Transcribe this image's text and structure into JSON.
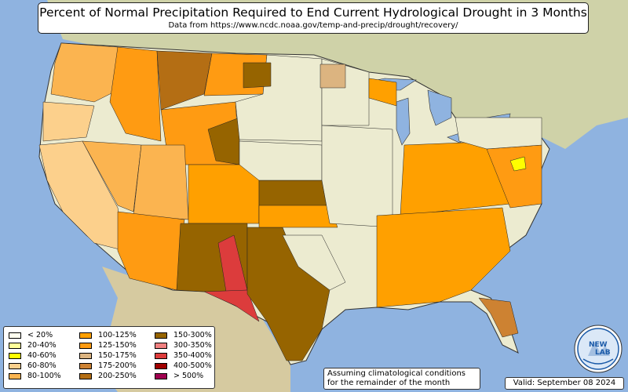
{
  "title": "Percent of Normal Precipitation Required to End Current Hydrological Drought in 3 Months",
  "subtitle": "Data from https://www.ncdc.noaa.gov/temp-and-precip/drought/recovery/",
  "note": [
    "Assuming climatological conditions",
    "for the remainder of the month"
  ],
  "valid": "Valid: September 08 2024",
  "logo_text": [
    "NEW",
    "LAB"
  ],
  "colors": {
    "ocean": "#8fb3e0",
    "land_base": "#ecebd0",
    "foreign_land": "#d9d6b0",
    "lakes": "#8fb3e0"
  },
  "legend": [
    {
      "label": "< 20%",
      "color": "#fffff0"
    },
    {
      "label": "20-40%",
      "color": "#ffff99"
    },
    {
      "label": "40-60%",
      "color": "#ffff00"
    },
    {
      "label": "60-80%",
      "color": "#fcd08c"
    },
    {
      "label": "80-100%",
      "color": "#fbb450"
    },
    {
      "label": "100-125%",
      "color": "#ffa000"
    },
    {
      "label": "125-150%",
      "color": "#ff9b12"
    },
    {
      "label": "150-175%",
      "color": "#dcb480"
    },
    {
      "label": "175-200%",
      "color": "#cd8232"
    },
    {
      "label": "200-250%",
      "color": "#b46e14"
    },
    {
      "label": "150-300%",
      "color": "#966400"
    },
    {
      "label": "300-350%",
      "color": "#f08080"
    },
    {
      "label": "350-400%",
      "color": "#dc3c3c"
    },
    {
      "label": "400-500%",
      "color": "#a00000"
    },
    {
      "label": "> 500%",
      "color": "#a00050"
    }
  ]
}
